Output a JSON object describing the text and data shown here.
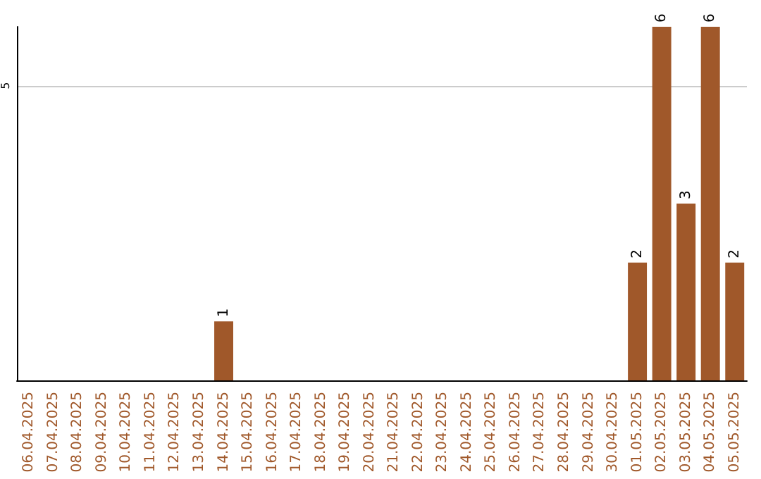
{
  "chart_data": {
    "type": "bar",
    "categories": [
      "06.04.2025",
      "07.04.2025",
      "08.04.2025",
      "09.04.2025",
      "10.04.2025",
      "11.04.2025",
      "12.04.2025",
      "13.04.2025",
      "14.04.2025",
      "15.04.2025",
      "16.04.2025",
      "17.04.2025",
      "18.04.2025",
      "19.04.2025",
      "20.04.2025",
      "21.04.2025",
      "22.04.2025",
      "23.04.2025",
      "24.04.2025",
      "25.04.2025",
      "26.04.2025",
      "27.04.2025",
      "28.04.2025",
      "29.04.2025",
      "30.04.2025",
      "01.05.2025",
      "02.05.2025",
      "03.05.2025",
      "04.05.2025",
      "05.05.2025"
    ],
    "values": [
      0,
      0,
      0,
      0,
      0,
      0,
      0,
      0,
      1,
      0,
      0,
      0,
      0,
      0,
      0,
      0,
      0,
      0,
      0,
      0,
      0,
      0,
      0,
      0,
      0,
      2,
      6,
      3,
      6,
      2
    ],
    "value_labels": [
      null,
      null,
      null,
      null,
      null,
      null,
      null,
      null,
      "1",
      null,
      null,
      null,
      null,
      null,
      null,
      null,
      null,
      null,
      null,
      null,
      null,
      null,
      null,
      null,
      null,
      "2",
      "6",
      "3",
      "6",
      "2"
    ],
    "color": "#a0582a",
    "ylim": [
      0,
      6
    ],
    "yticks": [
      5
    ],
    "grid": "y"
  }
}
